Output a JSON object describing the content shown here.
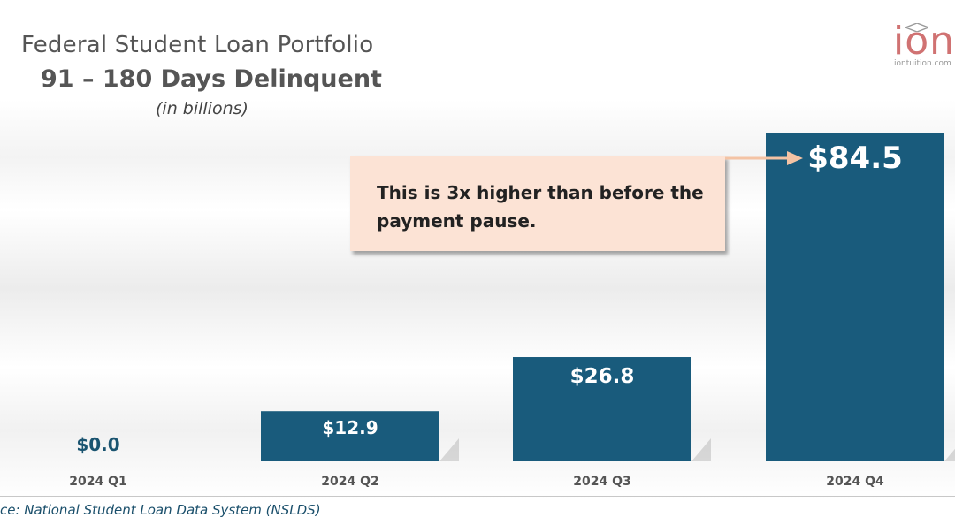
{
  "title": "Federal Student Loan Portfolio",
  "title_line2": "91 – 180 Days Delinquent",
  "subtitle": "(in billions)",
  "logo": {
    "text": "ion",
    "site": "iontuition.com"
  },
  "callout": {
    "text": "This is 3x higher than before the payment pause."
  },
  "source": "ce: National Student Loan Data System (NSLDS)",
  "colors": {
    "bar": "#195b7c",
    "callout_bg": "#fce3d5",
    "arrow": "#f4c3a4"
  },
  "chart_data": {
    "type": "bar",
    "categories": [
      "2024 Q1",
      "2024 Q2",
      "2024 Q3",
      "2024 Q4"
    ],
    "values": [
      0.0,
      12.9,
      26.8,
      84.5
    ],
    "data_labels": [
      "$0.0",
      "$12.9",
      "$26.8",
      "$84.5"
    ],
    "title": "Federal Student Loan Portfolio",
    "subtitle": "91 – 180 Days Delinquent",
    "ylabel": "",
    "xlabel": "",
    "grid": false,
    "legend": "none"
  }
}
